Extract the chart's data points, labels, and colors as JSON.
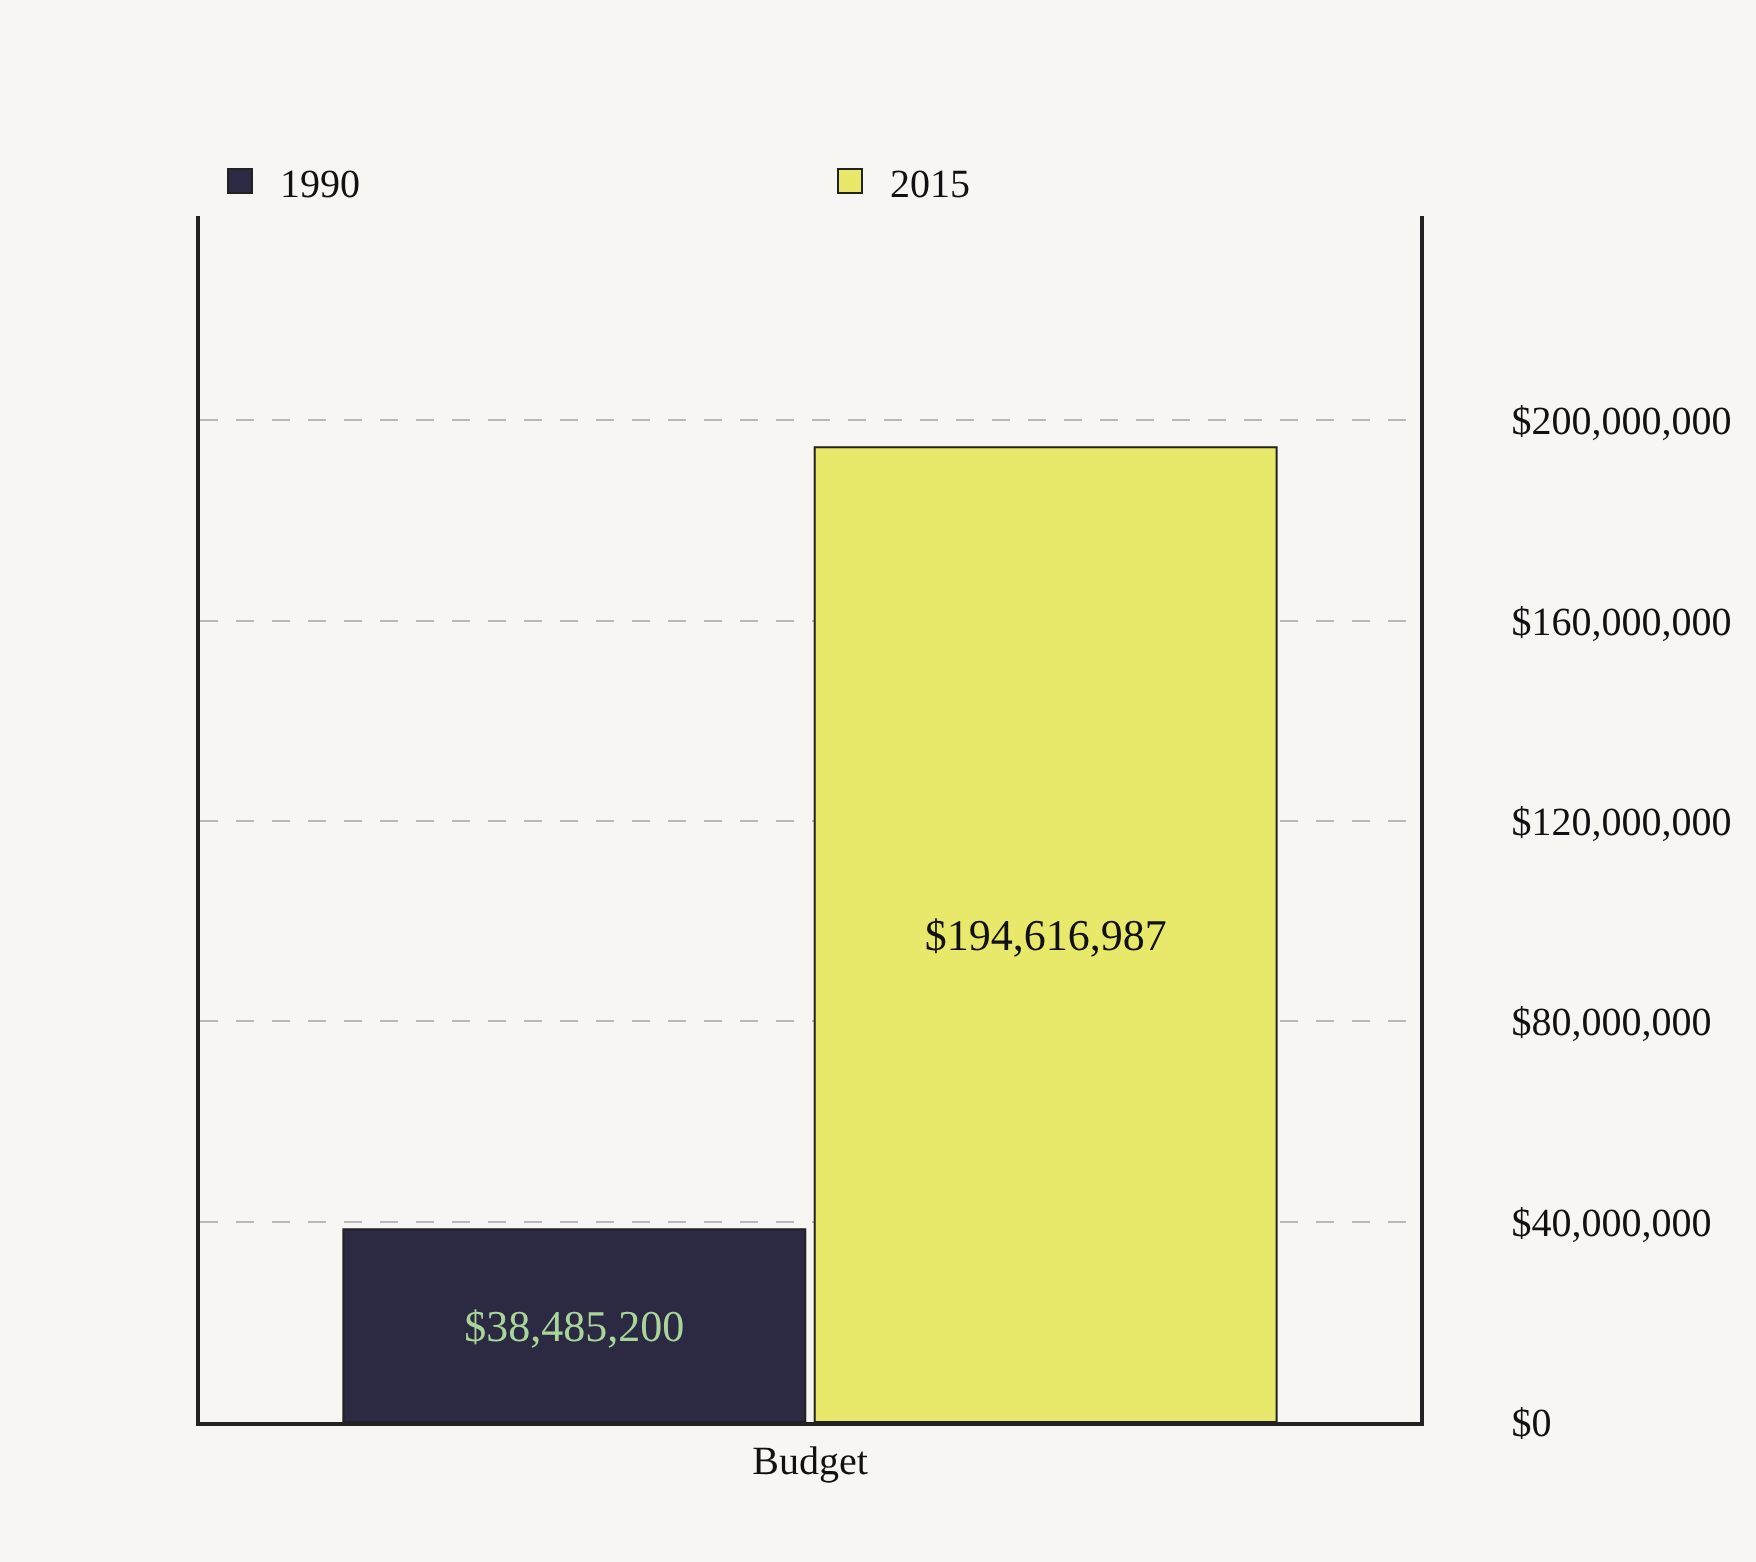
{
  "chart_data": {
    "type": "bar",
    "categories": [
      "Budget"
    ],
    "series": [
      {
        "name": "1990",
        "color": "#2b2a42",
        "values": [
          38485200
        ]
      },
      {
        "name": "2015",
        "color": "#e8e86a",
        "values": [
          194616987
        ]
      }
    ],
    "ylim": [
      0,
      240000000
    ],
    "yticks": [
      {
        "value": 0,
        "label": "$0"
      },
      {
        "value": 40000000,
        "label": "$40,000,000"
      },
      {
        "value": 80000000,
        "label": "$80,000,000"
      },
      {
        "value": 120000000,
        "label": "$120,000,000"
      },
      {
        "value": 160000000,
        "label": "$160,000,000"
      },
      {
        "value": 200000000,
        "label": "$200,000,000"
      }
    ],
    "grid": "y",
    "legend": "top left",
    "value_labels": [
      [
        "$38,485,200"
      ],
      [
        "$194,616,987"
      ]
    ]
  }
}
